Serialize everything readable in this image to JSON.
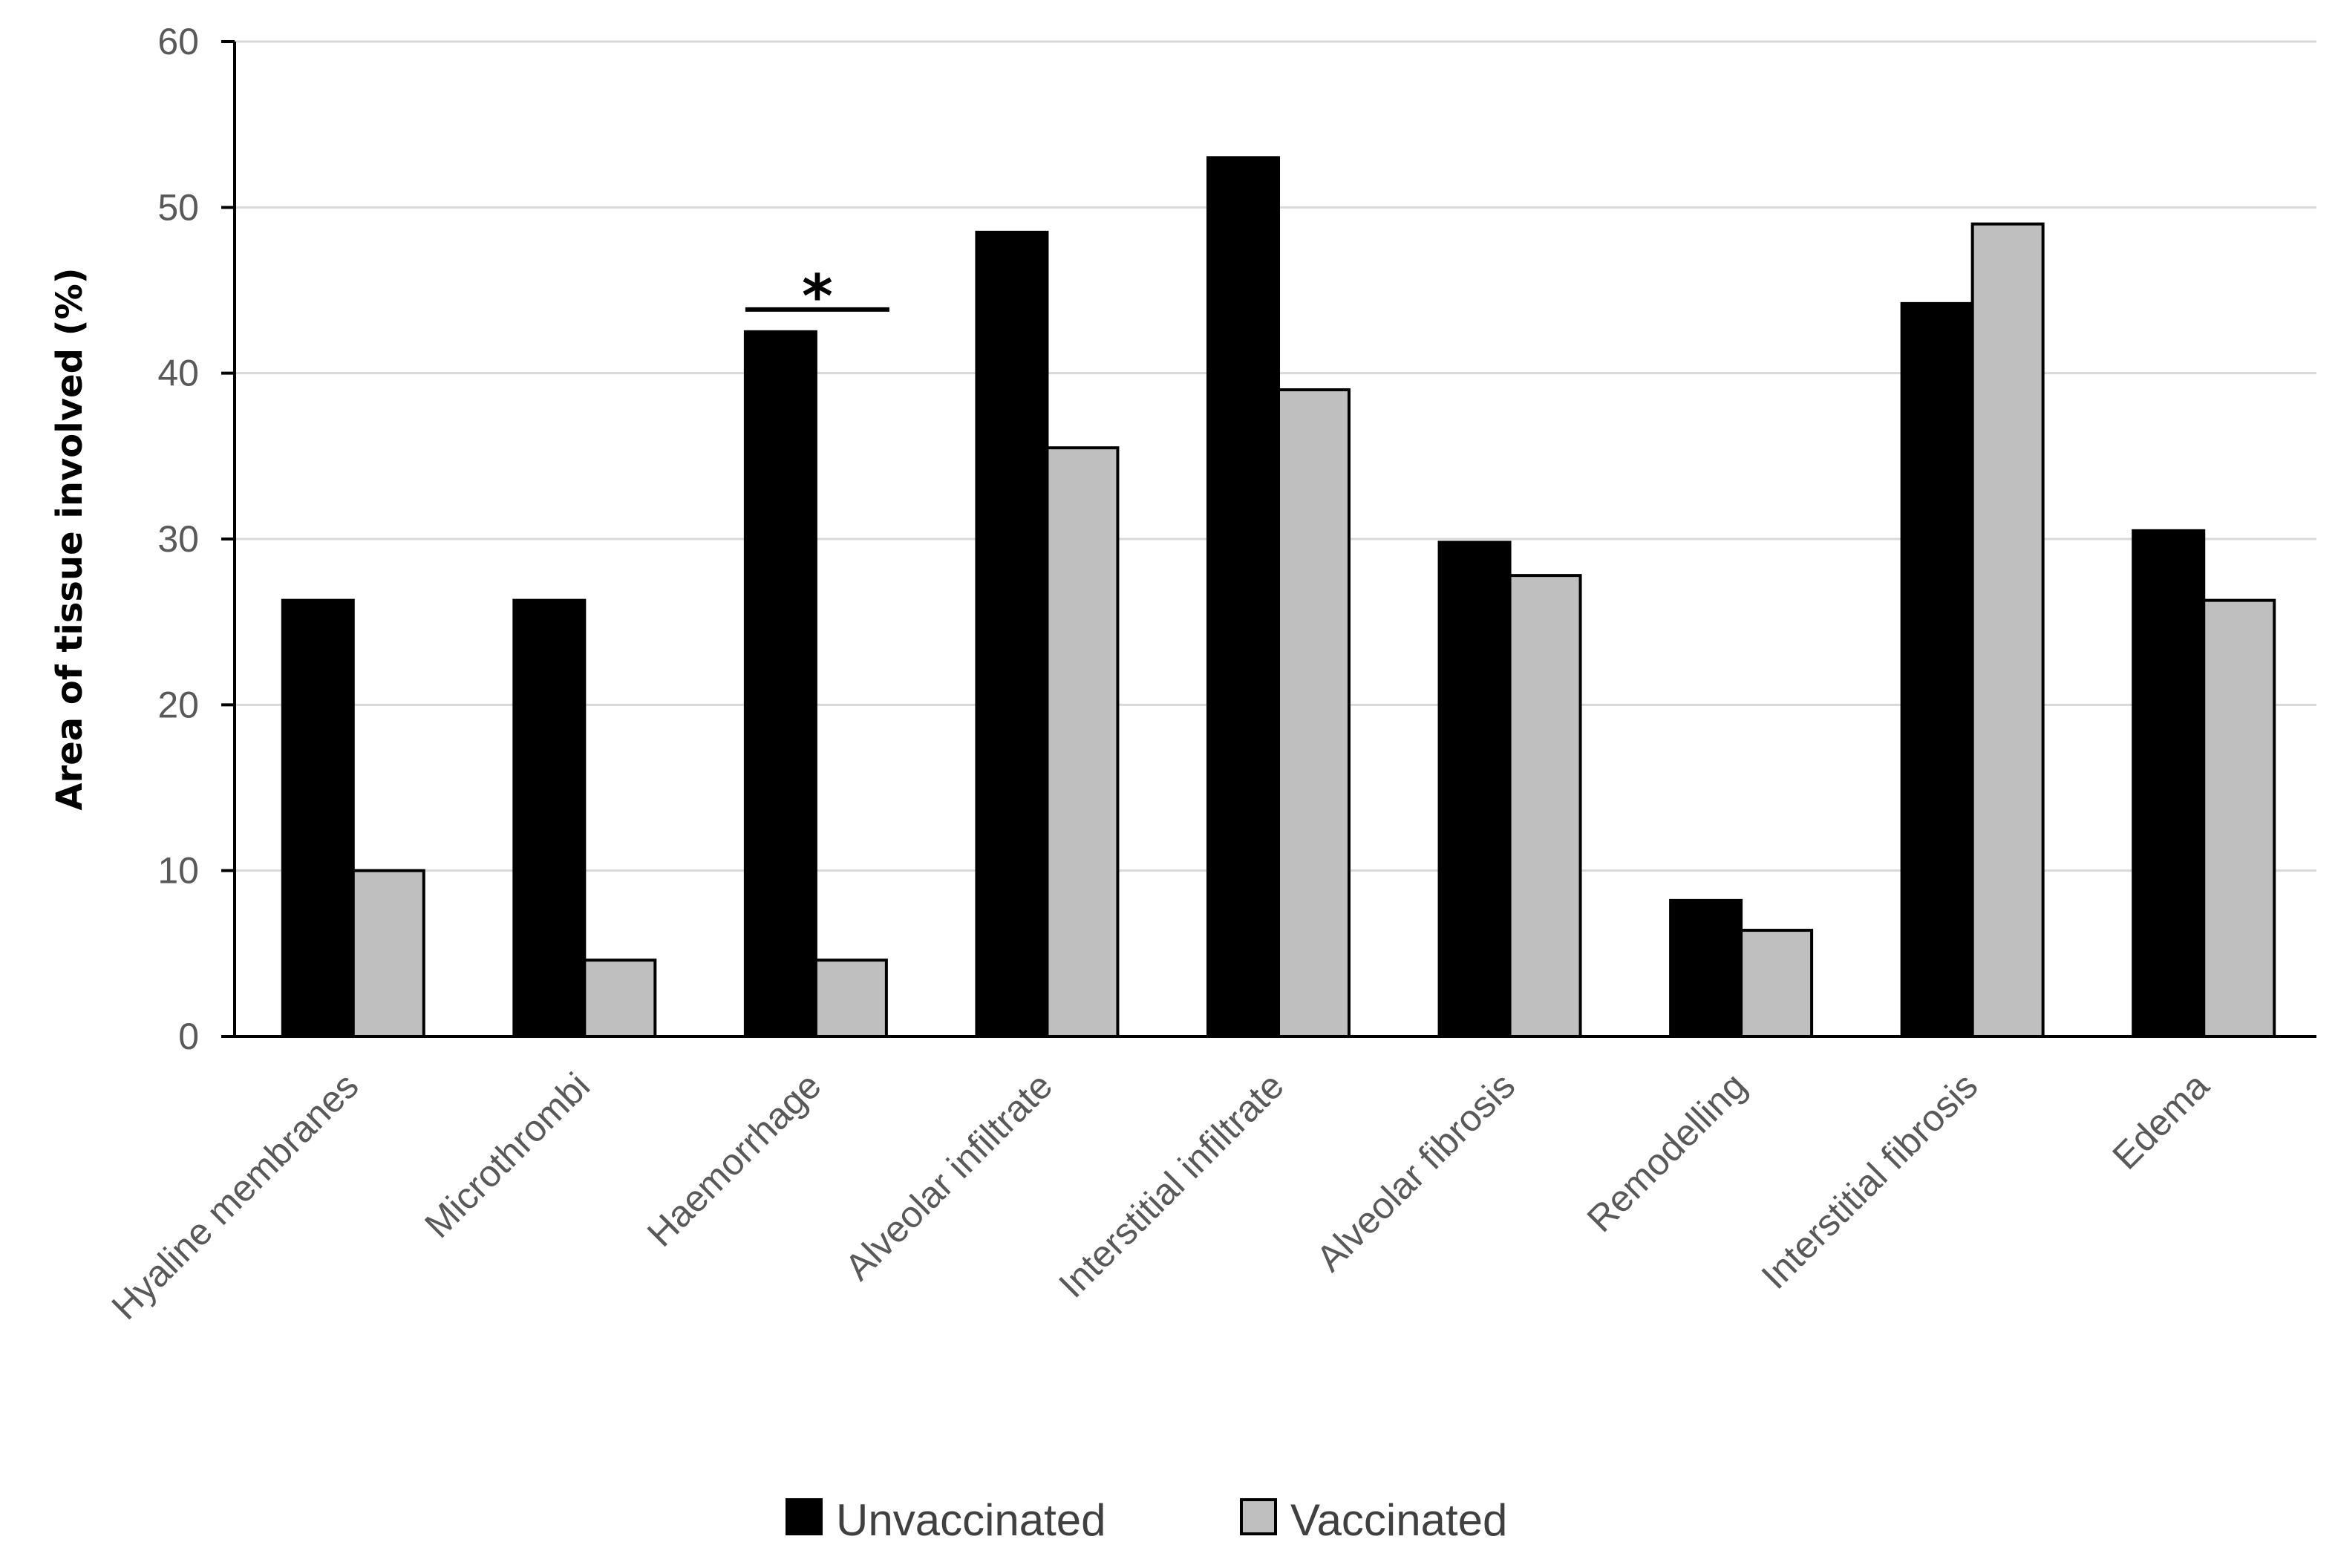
{
  "chart_data": {
    "type": "bar",
    "ylabel": "Area of tissue involved (%)",
    "ylim": [
      0,
      60
    ],
    "yticks": [
      0,
      10,
      20,
      30,
      40,
      50,
      60
    ],
    "grid": true,
    "legend_position": "bottom",
    "categories": [
      "Hyaline membranes",
      "Microthrombi",
      "Haemorrhage",
      "Alveolar infiltrate",
      "Interstitial infiltrate",
      "Alveolar fibrosis",
      "Remodelling",
      "Interstitial fibrosis",
      "Edema"
    ],
    "series": [
      {
        "name": "Unvaccinated",
        "color": "#000000",
        "values": [
          26.3,
          26.3,
          42.5,
          48.5,
          53.0,
          29.8,
          8.2,
          44.2,
          30.5
        ]
      },
      {
        "name": "Vaccinated",
        "color": "#bfbfbf",
        "values": [
          10.0,
          4.6,
          4.6,
          35.5,
          39.0,
          27.8,
          6.4,
          49.0,
          26.3
        ]
      }
    ],
    "annotations": [
      {
        "text": "*",
        "category": "Haemorrhage"
      }
    ]
  }
}
